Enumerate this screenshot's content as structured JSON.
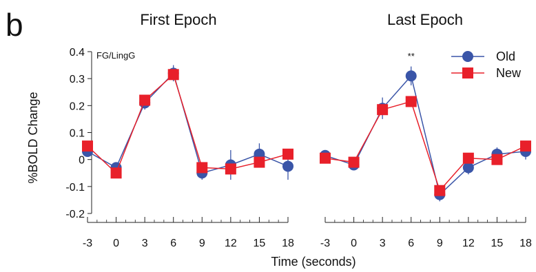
{
  "figure": {
    "panel_letter": "b",
    "xlabel": "Time (seconds)",
    "ylabel": "%BOLD Change"
  },
  "legend": {
    "position": "top-right",
    "entries": [
      "Old",
      "New"
    ]
  },
  "colors": {
    "old": "#3a55a8",
    "new": "#e8202a"
  },
  "chart_data": [
    {
      "type": "line",
      "title": "First Epoch",
      "annotation": "FG/LingG",
      "x": [
        -3,
        0,
        3,
        6,
        9,
        12,
        15,
        18
      ],
      "xlim": [
        -3,
        18
      ],
      "ylim": [
        -0.2,
        0.4
      ],
      "yticks": [
        "0.4",
        "0.3",
        "0.2",
        "0.1",
        "0",
        "-0.1",
        "-0.2"
      ],
      "series": [
        {
          "name": "Old",
          "marker": "circle",
          "values": [
            0.03,
            -0.03,
            0.21,
            0.32,
            -0.05,
            -0.02,
            0.02,
            -0.025
          ],
          "errors": [
            0.02,
            0.015,
            0.025,
            0.03,
            0.025,
            0.055,
            0.04,
            0.05
          ]
        },
        {
          "name": "New",
          "marker": "square",
          "values": [
            0.05,
            -0.05,
            0.22,
            0.315,
            -0.03,
            -0.035,
            -0.01,
            0.02
          ],
          "errors": [
            0.015,
            0.015,
            0.02,
            0.02,
            0.015,
            0.02,
            0.015,
            0.015
          ]
        }
      ]
    },
    {
      "type": "line",
      "title": "Last Epoch",
      "annotation": "**",
      "annotation_x": 6,
      "x": [
        -3,
        0,
        3,
        6,
        9,
        12,
        15,
        18
      ],
      "xlim": [
        -3,
        18
      ],
      "ylim": [
        -0.2,
        0.4
      ],
      "series": [
        {
          "name": "Old",
          "marker": "circle",
          "values": [
            0.015,
            -0.02,
            0.19,
            0.31,
            -0.13,
            -0.03,
            0.02,
            0.03
          ],
          "errors": [
            0.015,
            0.015,
            0.04,
            0.035,
            0.025,
            0.025,
            0.025,
            0.03
          ]
        },
        {
          "name": "New",
          "marker": "square",
          "values": [
            0.005,
            -0.01,
            0.185,
            0.215,
            -0.115,
            0.005,
            0.0,
            0.05
          ],
          "errors": [
            0.015,
            0.015,
            0.02,
            0.02,
            0.015,
            0.015,
            0.015,
            0.015
          ]
        }
      ]
    }
  ]
}
